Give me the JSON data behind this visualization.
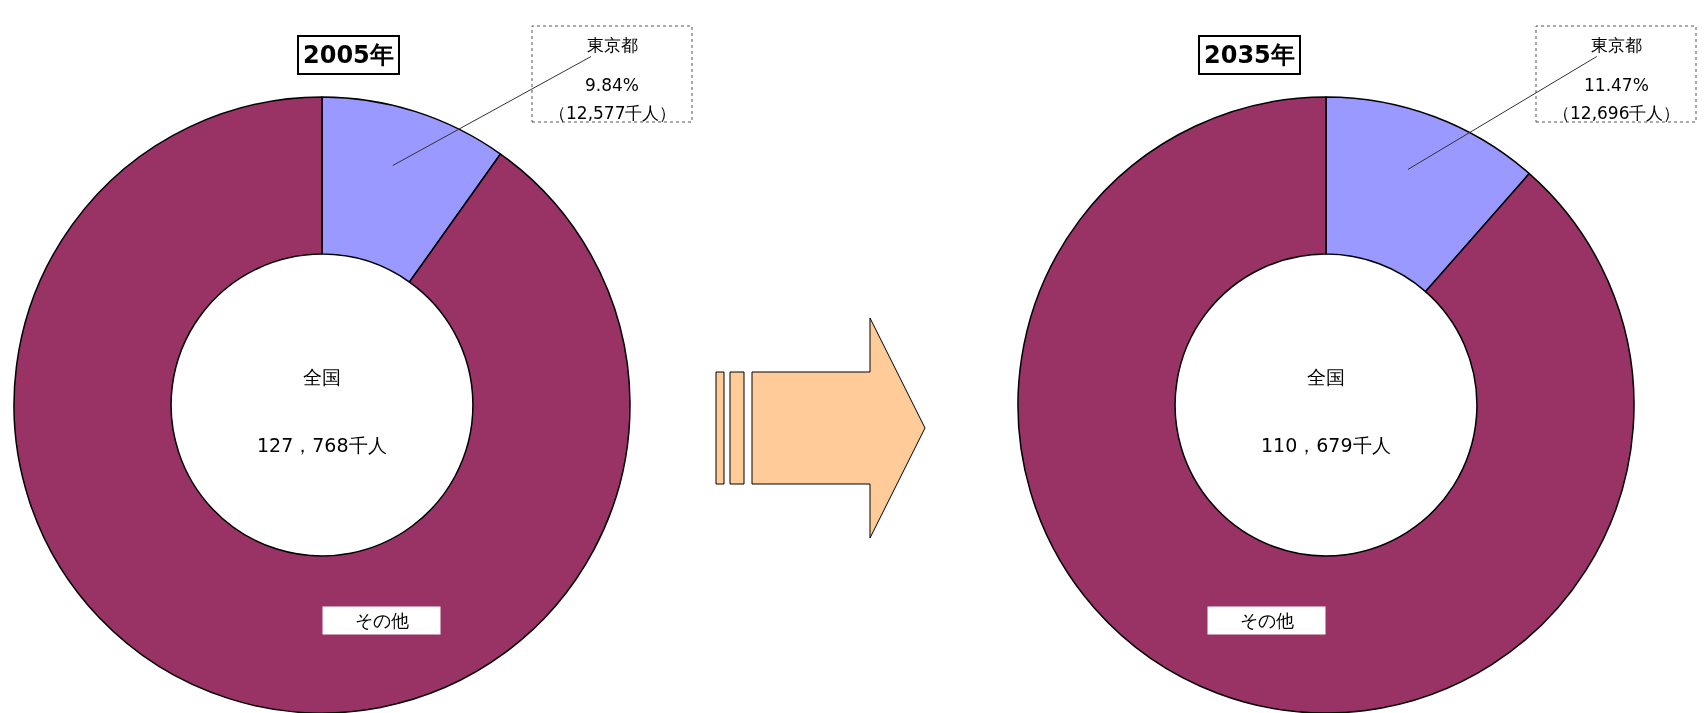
{
  "chart_data": [
    {
      "type": "donut",
      "title": "2005年",
      "categories": [
        "東京都",
        "その他"
      ],
      "values": [
        9.84,
        90.16
      ],
      "colors": [
        "#9999ff",
        "#993366"
      ],
      "value_labels": [
        "9.84%",
        null
      ],
      "annotations": [
        "（12,577千人）",
        "全国",
        "127，768千人"
      ]
    },
    {
      "type": "donut",
      "title": "2035年",
      "categories": [
        "東京都",
        "その他"
      ],
      "values": [
        11.47,
        88.53
      ],
      "colors": [
        "#9999ff",
        "#993366"
      ],
      "value_labels": [
        "11.47%",
        null
      ],
      "annotations": [
        "（12,696千人）",
        "全国",
        "110，679千人"
      ]
    }
  ]
}
